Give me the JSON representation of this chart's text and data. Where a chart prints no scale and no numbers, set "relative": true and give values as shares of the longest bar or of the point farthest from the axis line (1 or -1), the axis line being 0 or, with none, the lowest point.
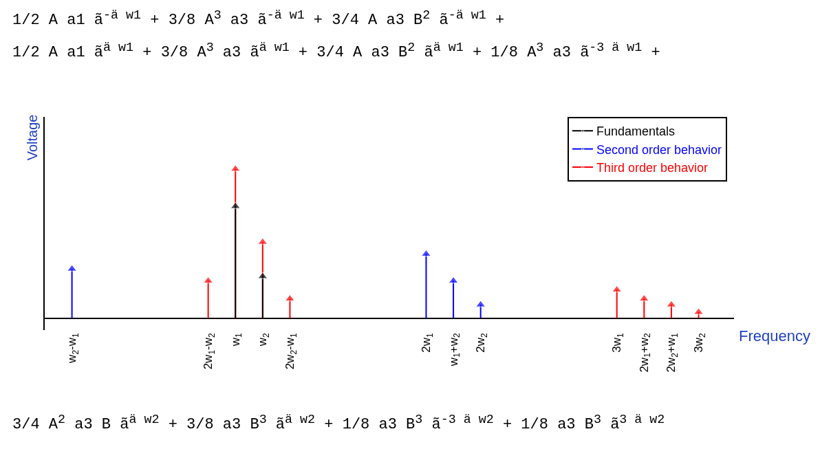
{
  "chart_data": {
    "type": "lollipop",
    "relative": true,
    "marker": "triangle",
    "legend": "top right",
    "xlabel": "Frequency",
    "ylabel": "Voltage",
    "categories": [
      "w$_{2}$-w$_{1}$",
      null,
      null,
      null,
      null,
      "2w$_{1}$-w$_{2}$",
      "w$_{1}$",
      "w$_{2}$",
      "2w$_{2}$-w$_{1}$",
      null,
      null,
      null,
      null,
      "2w$_{1}$",
      "w$_{1}$+w$_{2}$",
      "2w$_{2}$",
      null,
      null,
      null,
      null,
      "3w$_{1}$",
      "2w$_{1}$+w$_{2}$",
      "2w$_{2}$+w$_{1}$",
      "3w$_{2}$"
    ],
    "series": [
      {
        "name": "Fundamentals",
        "color": "#000000",
        "values": [
          null,
          null,
          null,
          null,
          null,
          null,
          0.75,
          0.28,
          null,
          null,
          null,
          null,
          null,
          null,
          null,
          null,
          null,
          null,
          null,
          null,
          null,
          null,
          null,
          null
        ]
      },
      {
        "name": "Second order behavior",
        "color": "#0000ff",
        "values": [
          0.33,
          null,
          null,
          null,
          null,
          null,
          null,
          null,
          null,
          null,
          null,
          null,
          null,
          0.43,
          0.25,
          0.09,
          null,
          null,
          null,
          null,
          null,
          null,
          null,
          null
        ]
      },
      {
        "name": "Third order behavior",
        "color": "#ff0000",
        "values": [
          null,
          null,
          null,
          null,
          null,
          0.25,
          1,
          0.51,
          0.13,
          null,
          null,
          null,
          null,
          null,
          null,
          null,
          null,
          null,
          null,
          null,
          0.19,
          0.13,
          0.09,
          0.04
        ]
      }
    ],
    "annotations": [
      "1/2 A a1 ã$^{-ä w1}$ + 3/8 A$^{3}$ a3 ã$^{-ä w1}$ + 3/4 A a3 B$^{2}$ ã$^{-ä w1}$ +",
      "1/2 A a1 ã$^{ä w1}$ + 3/8 A$^{3}$ a3 ã$^{ä w1}$ + 3/4 A a3 B$^{2}$ ã$^{ä w1}$ + 1/8 A$^{3}$ a3 ã$^{-3 ä w1}$ +",
      "3/4 A$^{2}$ a3 B ã$^{ä w2}$ + 3/8 a3 B$^{3}$ ã$^{ä w2}$ + 1/8 a3 B$^{3}$ ã$^{-3 ä w2}$ + 1/8 a3 B$^{3}$ ã$^{3 ä w2}$"
    ]
  }
}
